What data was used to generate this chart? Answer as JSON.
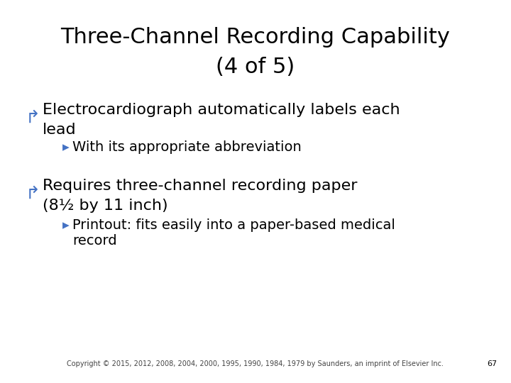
{
  "title_line1": "Three-Channel Recording Capability",
  "title_line2": "(4 of 5)",
  "title_fontsize": 22,
  "title_color": "#000000",
  "bg_color": "#ffffff",
  "bullet_color": "#4472c4",
  "text_color": "#000000",
  "bullet1_text_line1": "Electrocardiograph automatically labels each",
  "bullet1_text_line2": "lead",
  "sub_bullet1_text": "With its appropriate abbreviation",
  "bullet2_text_line1": "Requires three-channel recording paper",
  "bullet2_text_line2": "(8½ by 11 inch)",
  "sub_bullet2_text_line1": "Printout: fits easily into a paper-based medical",
  "sub_bullet2_text_line2": "record",
  "bullet_fontsize": 16,
  "sub_bullet_fontsize": 14,
  "footer_text": "Copyright © 2015, 2012, 2008, 2004, 2000, 1995, 1990, 1984, 1979 by Saunders, an imprint of Elsevier Inc.",
  "footer_fontsize": 7,
  "page_number": "67"
}
